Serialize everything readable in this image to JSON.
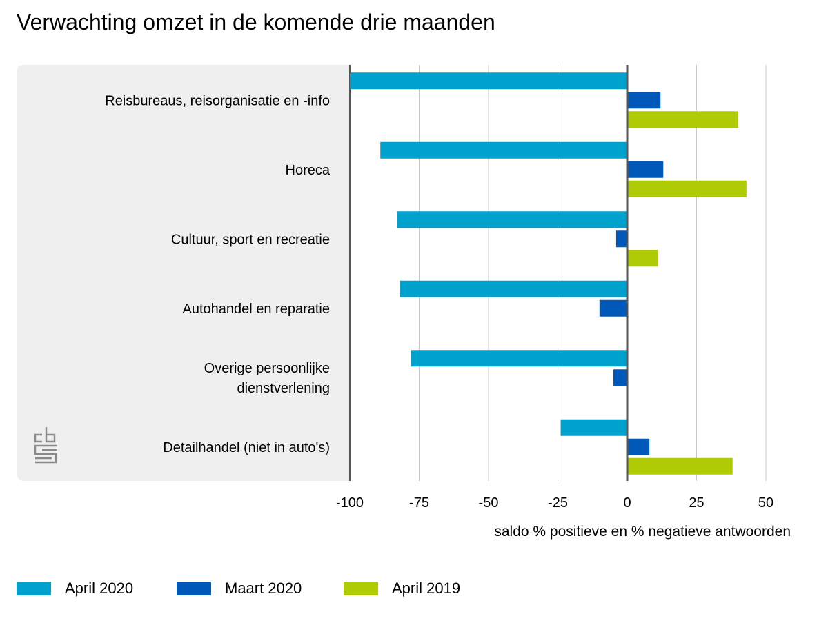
{
  "chart_data": {
    "type": "bar",
    "orientation": "horizontal",
    "title": "Verwachting omzet in de komende drie maanden",
    "xlabel": "saldo % positieve en % negatieve antwoorden",
    "ylabel": "",
    "xlim": [
      -100,
      50
    ],
    "xticks": [
      -100,
      -75,
      -50,
      -25,
      0,
      25,
      50
    ],
    "xtick_labels": [
      "-100",
      "-75",
      "-50",
      "-25",
      "0",
      "25",
      "50"
    ],
    "grid": true,
    "legend_position": "bottom-left",
    "categories": [
      [
        "Reisbureaus, reisorganisatie en -info"
      ],
      [
        "Horeca"
      ],
      [
        "Cultuur, sport en recreatie"
      ],
      [
        "Autohandel en reparatie"
      ],
      [
        "Overige persoonlijke",
        "dienstverlening"
      ],
      [
        "Detailhandel (niet in auto's)"
      ]
    ],
    "series": [
      {
        "name": "April 2020",
        "color": "#00a1cd",
        "values": [
          -100,
          -89,
          -83,
          -82,
          -78,
          -24
        ]
      },
      {
        "name": "Maart 2020",
        "color": "#0058b8",
        "values": [
          12,
          13,
          -4,
          -10,
          -5,
          8
        ]
      },
      {
        "name": "April 2019",
        "color": "#afcb05",
        "values": [
          40,
          43,
          11,
          null,
          null,
          38
        ]
      }
    ]
  },
  "colors": {
    "panel_background": "#efefef",
    "gridline": "#c8c8c8",
    "axis": "#555555"
  },
  "logo_icon": "cbs-logo-icon"
}
